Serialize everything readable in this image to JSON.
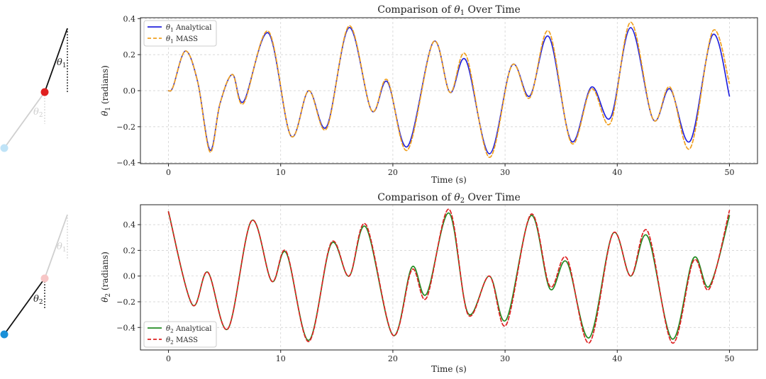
{
  "chart_data": [
    {
      "type": "line",
      "title": "Comparison of θ1 Over Time",
      "title_parts": {
        "prefix": "Comparison of ",
        "symbol": "θ",
        "sub": "1",
        "suffix": " Over Time"
      },
      "xlabel": "Time (s)",
      "ylabel": "θ1 (radians)",
      "ylabel_parts": {
        "symbol": "θ",
        "sub": "1",
        "suffix": " (radians)"
      },
      "xlim": [
        -2.5,
        52.5
      ],
      "ylim": [
        -0.405,
        0.405
      ],
      "xticks": [
        0,
        10,
        20,
        30,
        40,
        50
      ],
      "xtick_labels": [
        "0",
        "10",
        "20",
        "30",
        "40",
        "50"
      ],
      "yticks": [
        -0.4,
        -0.2,
        0.0,
        0.2,
        0.4
      ],
      "ytick_labels": [
        "−0.4",
        "−0.2",
        "0.0",
        "0.2",
        "0.4"
      ],
      "grid": true,
      "legend_position": "top-left",
      "series": [
        {
          "name": "θ1 Analytical",
          "name_parts": {
            "symbol": "θ",
            "sub": "1",
            "suffix": " Analytical"
          },
          "color": "#2222dd",
          "style": "solid",
          "x": [
            0,
            0.4,
            1.5,
            2.6,
            3.7,
            4.6,
            5.7,
            6.7,
            8.9,
            10.9,
            12.5,
            14.1,
            16.1,
            18.1,
            19.5,
            21.3,
            23.6,
            25.1,
            26.5,
            28.6,
            30.6,
            32.2,
            33.9,
            35.9,
            37.7,
            39.4,
            41.2,
            43.2,
            44.7,
            46.5,
            48.5,
            50
          ],
          "y": [
            0,
            0.02,
            0.22,
            0.05,
            -0.33,
            -0.07,
            0.09,
            -0.06,
            0.32,
            -0.25,
            0,
            -0.2,
            0.35,
            -0.11,
            0.05,
            -0.31,
            0.27,
            -0.01,
            0.17,
            -0.35,
            0.14,
            -0.03,
            0.3,
            -0.28,
            0.02,
            -0.15,
            0.35,
            -0.16,
            0.01,
            -0.28,
            0.31,
            -0.03
          ]
        },
        {
          "name": "θ1 MASS",
          "name_parts": {
            "symbol": "θ",
            "sub": "1",
            "suffix": " MASS"
          },
          "color": "#f0a020",
          "style": "dashed",
          "x": [
            0,
            0.4,
            1.5,
            2.6,
            3.7,
            4.6,
            5.7,
            6.7,
            8.9,
            10.9,
            12.5,
            14.1,
            16.1,
            18.1,
            19.5,
            21.3,
            23.6,
            25.1,
            26.5,
            28.6,
            30.6,
            32.2,
            33.9,
            35.9,
            37.7,
            39.4,
            41.2,
            43.2,
            44.7,
            46.5,
            48.5,
            50
          ],
          "y": [
            0,
            0.02,
            0.22,
            0.05,
            -0.34,
            -0.07,
            0.09,
            -0.07,
            0.33,
            -0.25,
            0,
            -0.21,
            0.36,
            -0.11,
            0.06,
            -0.33,
            0.27,
            -0.01,
            0.2,
            -0.37,
            0.14,
            -0.04,
            0.33,
            -0.29,
            0.01,
            -0.18,
            0.38,
            -0.16,
            0.02,
            -0.32,
            0.33,
            0.04
          ]
        }
      ]
    },
    {
      "type": "line",
      "title": "Comparison of θ2 Over Time",
      "title_parts": {
        "prefix": "Comparison of ",
        "symbol": "θ",
        "sub": "2",
        "suffix": " Over Time"
      },
      "xlabel": "Time (s)",
      "ylabel": "θ2 (radians)",
      "ylabel_parts": {
        "symbol": "θ",
        "sub": "2",
        "suffix": " (radians)"
      },
      "xlim": [
        -2.5,
        52.5
      ],
      "ylim": [
        -0.575,
        0.555
      ],
      "xticks": [
        0,
        10,
        20,
        30,
        40,
        50
      ],
      "xtick_labels": [
        "0",
        "10",
        "20",
        "30",
        "40",
        "50"
      ],
      "yticks": [
        -0.4,
        -0.2,
        0.0,
        0.2,
        0.4
      ],
      "ytick_labels": [
        "−0.4",
        "−0.2",
        "0.0",
        "0.2",
        "0.4"
      ],
      "grid": true,
      "legend_position": "bottom-left",
      "series": [
        {
          "name": "θ2 Analytical",
          "name_parts": {
            "symbol": "θ",
            "sub": "2",
            "suffix": " Analytical"
          },
          "color": "#228b22",
          "style": "solid",
          "x": [
            0,
            2.1,
            3.5,
            5.3,
            7.4,
            9.2,
            10.5,
            12.5,
            14.5,
            16.1,
            17.6,
            20,
            21.7,
            23,
            25,
            26.7,
            28.6,
            30.1,
            32.3,
            34,
            35.5,
            37.5,
            39.6,
            41.2,
            42.7,
            44.9,
            46.8,
            48.2,
            50
          ],
          "y": [
            0.5,
            -0.22,
            0.03,
            -0.41,
            0.43,
            -0.04,
            0.18,
            -0.5,
            0.25,
            0,
            0.38,
            -0.46,
            0.07,
            -0.14,
            0.49,
            -0.29,
            0,
            -0.34,
            0.47,
            -0.1,
            0.11,
            -0.48,
            0.33,
            0,
            0.31,
            -0.49,
            0.14,
            -0.08,
            0.47
          ]
        },
        {
          "name": "θ2 MASS",
          "name_parts": {
            "symbol": "θ",
            "sub": "2",
            "suffix": " MASS"
          },
          "color": "#dd2222",
          "style": "dashed",
          "x": [
            0,
            2.1,
            3.5,
            5.3,
            7.4,
            9.2,
            10.5,
            12.5,
            14.5,
            16.1,
            17.6,
            20,
            21.7,
            23,
            25,
            26.7,
            28.6,
            30.1,
            32.3,
            34,
            35.5,
            37.5,
            39.6,
            41.2,
            42.7,
            44.9,
            46.8,
            48.2,
            50
          ],
          "y": [
            0.5,
            -0.22,
            0.03,
            -0.41,
            0.43,
            -0.04,
            0.19,
            -0.51,
            0.26,
            0,
            0.4,
            -0.46,
            0.05,
            -0.17,
            0.52,
            -0.3,
            0,
            -0.38,
            0.48,
            -0.08,
            0.14,
            -0.52,
            0.33,
            0,
            0.35,
            -0.52,
            0.12,
            -0.1,
            0.51
          ]
        }
      ]
    }
  ],
  "pendulum_labels": {
    "upper": {
      "symbol": "θ",
      "sub_bold": "1",
      "sub_faded": "2"
    },
    "lower": {
      "symbol": "θ",
      "sub_bold": "2",
      "sub_faded": "1"
    }
  },
  "colors": {
    "grid": "#cccccc",
    "rod": "#111111",
    "rod_faded": "#cfcfcf",
    "bob_red": "#e02020",
    "bob_red_faded": "#f7c6c6",
    "bob_blue": "#1a90d8",
    "bob_blue_faded": "#bfe3f7"
  }
}
